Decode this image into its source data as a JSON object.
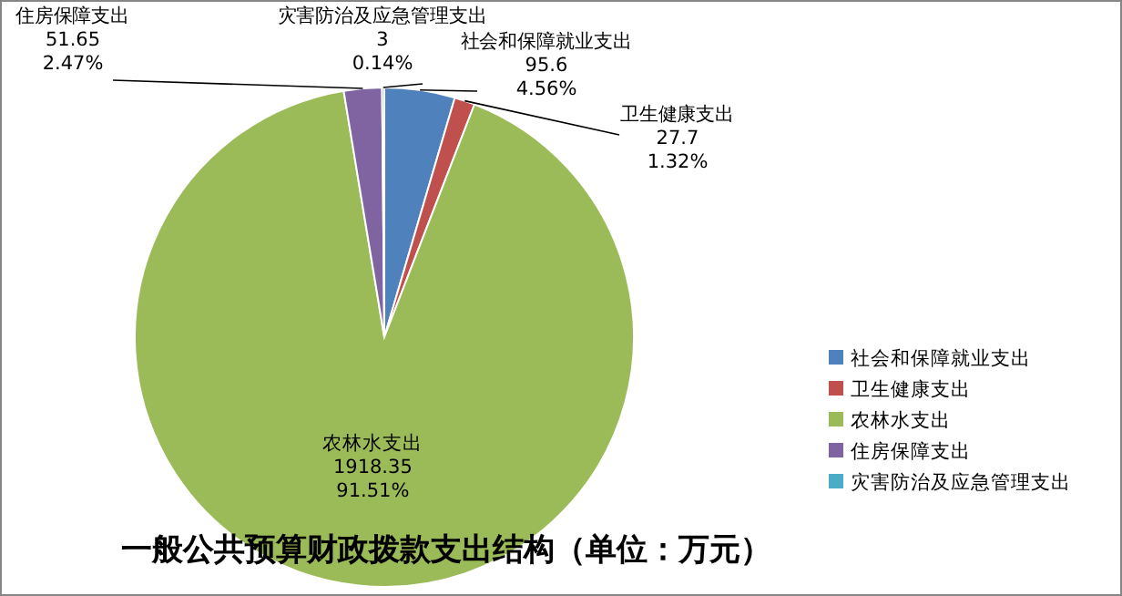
{
  "chart_data": {
    "type": "pie",
    "title": "一般公共预算财政拨款支出结构（单位：万元）",
    "categories": [
      "社会和保障就业支出",
      "卫生健康支出",
      "农林水支出",
      "住房保障支出",
      "灾害防治及应急管理支出"
    ],
    "values": [
      95.6,
      27.7,
      1918.35,
      51.65,
      3
    ],
    "colors": [
      "#4f81bd",
      "#c0504d",
      "#9bbb59",
      "#8064a2",
      "#4bacc6"
    ],
    "value_labels": [
      "95.6\n4.56%",
      "27.7\n1.32%",
      "1918.35\n91.51%",
      "51.65\n2.47%",
      "3\n0.14%"
    ],
    "legend": "right"
  }
}
